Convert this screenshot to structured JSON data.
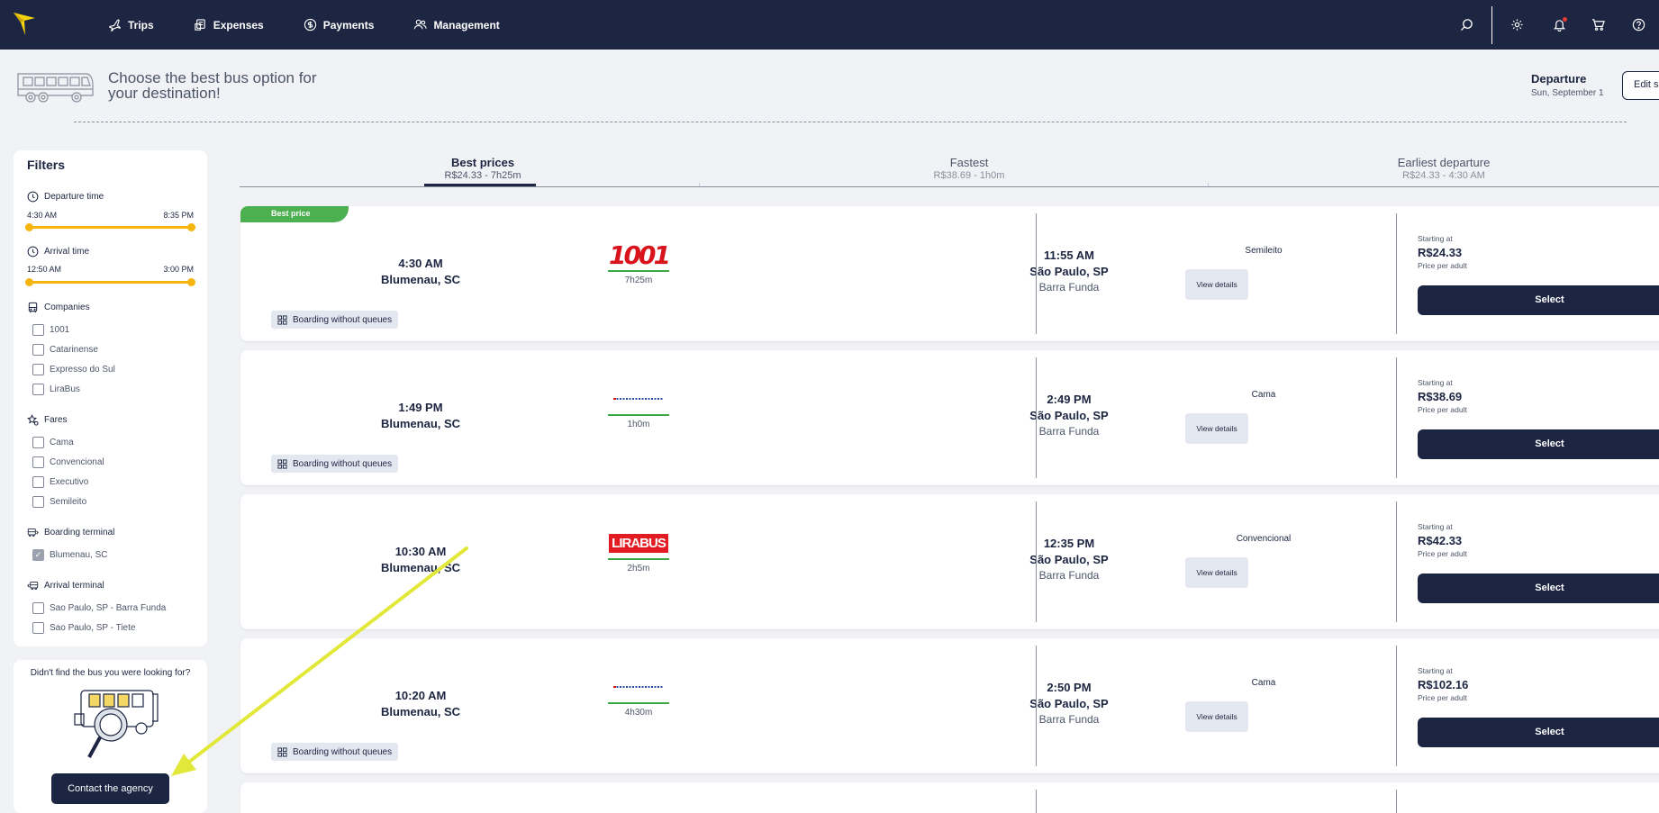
{
  "nav": {
    "items": [
      {
        "label": "Trips",
        "icon": "plane-icon"
      },
      {
        "label": "Expenses",
        "icon": "expenses-icon"
      },
      {
        "label": "Payments",
        "icon": "dollar-circle-icon"
      },
      {
        "label": "Management",
        "icon": "users-icon"
      }
    ],
    "right_icons": [
      "search-icon",
      "gear-icon",
      "bell-icon",
      "cart-icon",
      "help-icon"
    ]
  },
  "header": {
    "headline": "Choose the best bus option for your destination!",
    "departure_label": "Departure",
    "departure_date": "Sun, September 1",
    "edit_label": "Edit se"
  },
  "filters": {
    "title": "Filters",
    "departure_time": {
      "label": "Departure time",
      "min": "4:30 AM",
      "max": "8:35 PM"
    },
    "arrival_time": {
      "label": "Arrival time",
      "min": "12:50 AM",
      "max": "3:00 PM"
    },
    "companies": {
      "label": "Companies",
      "options": [
        "1001",
        "Catarinense",
        "Expresso do Sul",
        "LiraBus"
      ]
    },
    "fares": {
      "label": "Fares",
      "options": [
        "Cama",
        "Convencional",
        "Executivo",
        "Semileito"
      ]
    },
    "boarding_terminal": {
      "label": "Boarding terminal",
      "options": [
        {
          "label": "Blumenau, SC",
          "checked": true
        }
      ]
    },
    "arrival_terminal": {
      "label": "Arrival terminal",
      "options": [
        "Sao Paulo, SP - Barra Funda",
        "Sao Paulo, SP - Tiete"
      ]
    }
  },
  "help": {
    "text": "Didn't find the bus you were looking for?",
    "button": "Contact the agency"
  },
  "tabs": [
    {
      "label": "Best prices",
      "sub": "R$24.33 - 7h25m",
      "active": true
    },
    {
      "label": "Fastest",
      "sub": "R$38.69 - 1h0m",
      "active": false
    },
    {
      "label": "Earliest departure",
      "sub": "R$24.33 - 4:30 AM",
      "active": false
    }
  ],
  "trips": [
    {
      "badge": "Best price",
      "dep_time": "4:30 AM",
      "dep_city": "Blumenau, SC",
      "company_logo": "1001",
      "duration": "7h25m",
      "arr_time": "11:55 AM",
      "arr_city": "São Paulo, SP",
      "arr_terminal": "Barra Funda",
      "boarding": "Boarding without queues",
      "fare": "Semileito",
      "details": "View details",
      "starting": "Starting at",
      "price": "R$24.33",
      "per": "Price per adult",
      "select": "Select"
    },
    {
      "badge": "",
      "dep_time": "1:49 PM",
      "dep_city": "Blumenau, SC",
      "company_logo": "expresso",
      "duration": "1h0m",
      "arr_time": "2:49 PM",
      "arr_city": "São Paulo, SP",
      "arr_terminal": "Barra Funda",
      "boarding": "Boarding without queues",
      "fare": "Cama",
      "details": "View details",
      "starting": "Starting at",
      "price": "R$38.69",
      "per": "Price per adult",
      "select": "Select"
    },
    {
      "badge": "",
      "dep_time": "10:30 AM",
      "dep_city": "Blumenau, SC",
      "company_logo": "LIRABUS",
      "duration": "2h5m",
      "arr_time": "12:35 PM",
      "arr_city": "São Paulo, SP",
      "arr_terminal": "Barra Funda",
      "boarding": "",
      "fare": "Convencional",
      "details": "View details",
      "starting": "Starting at",
      "price": "R$42.33",
      "per": "Price per adult",
      "select": "Select"
    },
    {
      "badge": "",
      "dep_time": "10:20 AM",
      "dep_city": "Blumenau, SC",
      "company_logo": "expresso",
      "duration": "4h30m",
      "arr_time": "2:50 PM",
      "arr_city": "São Paulo, SP",
      "arr_terminal": "Barra Funda",
      "boarding": "Boarding without queues",
      "fare": "Cama",
      "details": "View details",
      "starting": "Starting at",
      "price": "R$102.16",
      "per": "Price per adult",
      "select": "Select"
    }
  ],
  "colors": {
    "navy": "#1c2541",
    "accent_yellow": "#f5b50e",
    "green": "#4caf50",
    "annotation_arrow": "#e2e83a"
  }
}
